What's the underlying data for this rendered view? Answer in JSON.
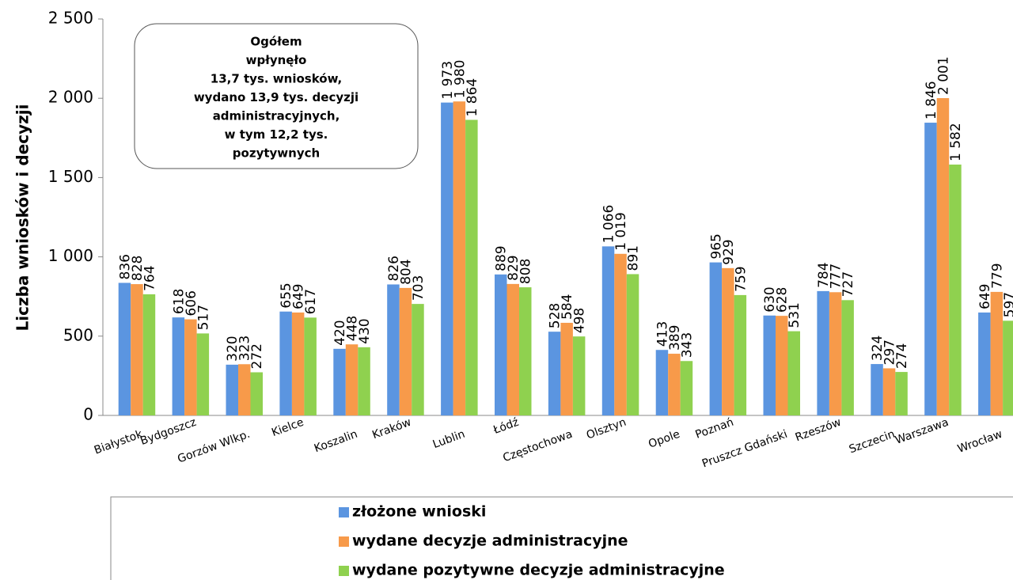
{
  "chart_data": {
    "type": "bar",
    "y_label": "Liczba wniosków i decyzji",
    "annotation": [
      "Ogółem",
      "wpłynęło",
      "13,7 tys. wniosków,",
      "wydano 13,9 tys. decyzji",
      "administracyjnych,",
      "w tym 12,2 tys.",
      "pozytywnych"
    ],
    "categories": [
      "Białystok",
      "Bydgoszcz",
      "Gorzów Wlkp.",
      "Kielce",
      "Koszalin",
      "Kraków",
      "Lublin",
      "Łódź",
      "Częstochowa",
      "Olsztyn",
      "Opole",
      "Poznań",
      "Pruszcz Gdański",
      "Rzeszów",
      "Szczecin",
      "Warszawa",
      "Wrocław"
    ],
    "series": [
      {
        "name": "złożone wnioski",
        "color": "#5b95e0",
        "values": [
          836,
          618,
          320,
          655,
          420,
          826,
          1973,
          889,
          528,
          1066,
          413,
          965,
          630,
          784,
          324,
          1846,
          649
        ],
        "value_labels": [
          "836",
          "618",
          "320",
          "655",
          "420",
          "826",
          "1 973",
          "889",
          "528",
          "1 066",
          "413",
          "965",
          "630",
          "784",
          "324",
          "1 846",
          "649"
        ]
      },
      {
        "name": "wydane decyzje administracyjne",
        "color": "#f79a4a",
        "values": [
          828,
          606,
          323,
          649,
          448,
          804,
          1980,
          829,
          584,
          1019,
          389,
          929,
          628,
          777,
          297,
          2001,
          779
        ],
        "value_labels": [
          "828",
          "606",
          "323",
          "649",
          "448",
          "804",
          "1 980",
          "829",
          "584",
          "1 019",
          "389",
          "929",
          "628",
          "777",
          "297",
          "2 001",
          "779"
        ]
      },
      {
        "name": "wydane pozytywne decyzje administracyjne",
        "color": "#8fd14f",
        "values": [
          764,
          517,
          272,
          617,
          430,
          703,
          1864,
          808,
          498,
          891,
          343,
          759,
          531,
          727,
          274,
          1582,
          597
        ],
        "value_labels": [
          "764",
          "517",
          "272",
          "617",
          "430",
          "703",
          "1 864",
          "808",
          "498",
          "891",
          "343",
          "759",
          "531",
          "727",
          "274",
          "1 582",
          "597"
        ]
      }
    ],
    "ylim": [
      0,
      2500
    ],
    "yticks": [
      0,
      500,
      {
        "value": 1000,
        "label": "1 000"
      },
      {
        "value": 1500,
        "label": "1 500"
      },
      {
        "value": 2000,
        "label": "2 000"
      },
      {
        "value": 2500,
        "label": "2 500"
      }
    ]
  }
}
